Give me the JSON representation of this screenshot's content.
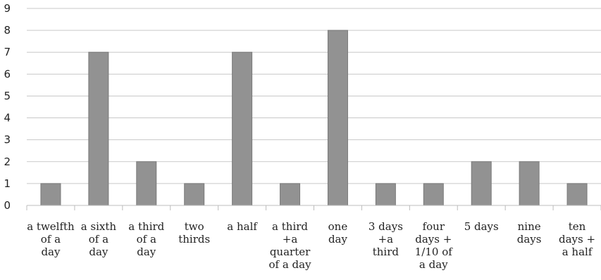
{
  "chart_data": {
    "type": "bar",
    "title": "",
    "xlabel": "",
    "ylabel": "",
    "ylim": [
      0,
      9
    ],
    "yticks": [
      0,
      1,
      2,
      3,
      4,
      5,
      6,
      7,
      8,
      9
    ],
    "grid": true,
    "legend": "none",
    "categories": [
      "a twelfth of a day",
      "a sixth of a day",
      "a third of a day",
      "two thirds",
      "a half",
      "a third +a quarter of a day",
      "one day",
      "3 days +a third",
      "four days + 1/10 of a day",
      "5 days",
      "nine days",
      "ten days + a half"
    ],
    "category_lines": [
      [
        "a twelfth",
        "of a",
        "day"
      ],
      [
        "a sixth",
        "of a",
        "day"
      ],
      [
        "a third",
        "of a",
        "day"
      ],
      [
        "two",
        "thirds"
      ],
      [
        "a half"
      ],
      [
        "a third",
        "+a",
        "quarter",
        "of a day"
      ],
      [
        "one",
        "day"
      ],
      [
        "3 days",
        "+a",
        "third"
      ],
      [
        "four",
        "days +",
        "1/10 of",
        "a day"
      ],
      [
        "5 days"
      ],
      [
        "nine",
        "days"
      ],
      [
        "ten",
        "days +",
        "a half"
      ]
    ],
    "values": [
      1,
      7,
      2,
      1,
      7,
      1,
      8,
      1,
      1,
      2,
      2,
      1
    ],
    "colors": {
      "bar": "#929292",
      "bar_edge": "#7a7a7a",
      "grid": "#c9c9c9",
      "axis": "#bcbcbc",
      "text": "#222222"
    }
  }
}
